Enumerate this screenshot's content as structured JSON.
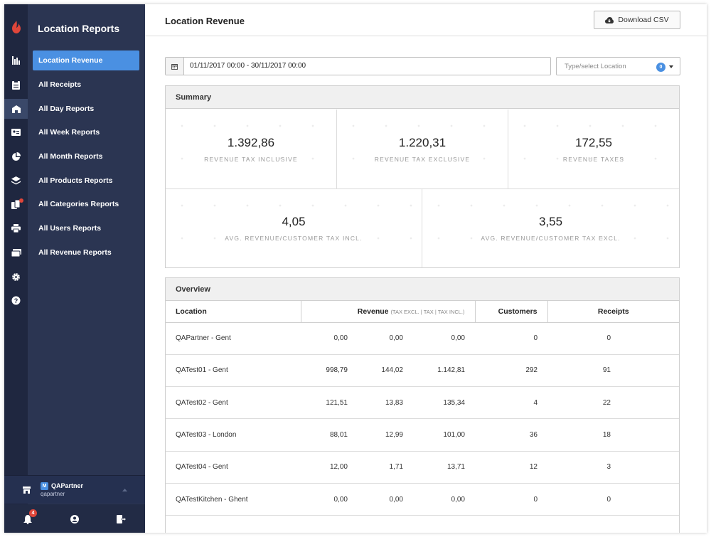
{
  "app": {
    "nav_title": "Location Reports"
  },
  "nav_items": [
    {
      "label": "Location Revenue"
    },
    {
      "label": "All Receipts"
    },
    {
      "label": "All Day Reports"
    },
    {
      "label": "All Week Reports"
    },
    {
      "label": "All Month Reports"
    },
    {
      "label": "All Products Reports"
    },
    {
      "label": "All Categories Reports"
    },
    {
      "label": "All Users Reports"
    },
    {
      "label": "All Revenue Reports"
    }
  ],
  "rail_icons": [
    "bar-chart-icon",
    "clipboard-icon",
    "store-icon",
    "id-card-icon",
    "pie-chart-icon",
    "layers-icon",
    "devices-icon",
    "printer-icon",
    "cards-icon",
    "gear-icon",
    "help-icon"
  ],
  "user": {
    "badge": "M",
    "name": "QAPartner",
    "username": "qapartner"
  },
  "notifications": {
    "count": "4"
  },
  "page": {
    "title": "Location Revenue",
    "download_label": "Download CSV",
    "date_range": "01/11/2017 00:00 - 30/11/2017 00:00",
    "location_placeholder": "Type/select Location",
    "location_count": "0"
  },
  "summary": {
    "title": "Summary",
    "metrics": [
      {
        "value": "1.392,86",
        "label": "Revenue tax inclusive"
      },
      {
        "value": "1.220,31",
        "label": "Revenue tax exclusive"
      },
      {
        "value": "172,55",
        "label": "Revenue taxes"
      },
      {
        "value": "4,05",
        "label": "Avg. revenue/customer tax incl."
      },
      {
        "value": "3,55",
        "label": "Avg. revenue/customer tax excl."
      }
    ]
  },
  "overview": {
    "title": "Overview",
    "headers": {
      "location": "Location",
      "revenue": "Revenue",
      "revenue_sub": "(TAX EXCL. | TAX | TAX INCL.)",
      "customers": "Customers",
      "receipts": "Receipts"
    },
    "rows": [
      {
        "location": "QAPartner - Gent",
        "excl": "0,00",
        "tax": "0,00",
        "incl": "0,00",
        "customers": "0",
        "receipts": "0"
      },
      {
        "location": "QATest01 - Gent",
        "excl": "998,79",
        "tax": "144,02",
        "incl": "1.142,81",
        "customers": "292",
        "receipts": "91"
      },
      {
        "location": "QATest02 - Gent",
        "excl": "121,51",
        "tax": "13,83",
        "incl": "135,34",
        "customers": "4",
        "receipts": "22"
      },
      {
        "location": "QATest03 - London",
        "excl": "88,01",
        "tax": "12,99",
        "incl": "101,00",
        "customers": "36",
        "receipts": "18"
      },
      {
        "location": "QATest04 - Gent",
        "excl": "12,00",
        "tax": "1,71",
        "incl": "13,71",
        "customers": "12",
        "receipts": "3"
      },
      {
        "location": "QATestKitchen - Ghent",
        "excl": "0,00",
        "tax": "0,00",
        "incl": "0,00",
        "customers": "0",
        "receipts": "0"
      }
    ]
  }
}
